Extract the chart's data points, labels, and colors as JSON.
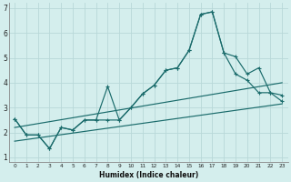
{
  "xlabel": "Humidex (Indice chaleur)",
  "bg_color": "#d4eeed",
  "grid_color": "#b8d8d8",
  "line_color": "#1a6b6b",
  "xlim": [
    -0.5,
    23.5
  ],
  "ylim": [
    0.8,
    7.2
  ],
  "yticks": [
    1,
    2,
    3,
    4,
    5,
    6,
    7
  ],
  "xticks": [
    0,
    1,
    2,
    3,
    4,
    5,
    6,
    7,
    8,
    9,
    10,
    11,
    12,
    13,
    14,
    15,
    16,
    17,
    18,
    19,
    20,
    21,
    22,
    23
  ],
  "line1_x": [
    0,
    1,
    2,
    3,
    4,
    5,
    6,
    7,
    8,
    9,
    10,
    11,
    12,
    13,
    14,
    15,
    16,
    17,
    18,
    19,
    20,
    21,
    22,
    23
  ],
  "line1_y": [
    2.55,
    1.9,
    1.9,
    1.35,
    2.2,
    2.1,
    2.5,
    2.5,
    2.5,
    2.5,
    3.0,
    3.55,
    3.9,
    4.5,
    4.6,
    5.3,
    6.75,
    6.85,
    5.2,
    5.05,
    4.35,
    4.6,
    3.6,
    3.5
  ],
  "line2_x": [
    0,
    1,
    2,
    3,
    4,
    5,
    6,
    7,
    8,
    9,
    10,
    11,
    12,
    13,
    14,
    15,
    16,
    17,
    18,
    19,
    20,
    21,
    22,
    23
  ],
  "line2_y": [
    2.55,
    1.9,
    1.9,
    1.35,
    2.2,
    2.1,
    2.5,
    2.5,
    3.85,
    2.5,
    3.0,
    3.55,
    3.9,
    4.5,
    4.6,
    5.3,
    6.75,
    6.85,
    5.2,
    4.35,
    4.1,
    3.6,
    3.6,
    3.25
  ],
  "line3_x": [
    0,
    23
  ],
  "line3_y": [
    1.65,
    3.15
  ],
  "line4_x": [
    0,
    23
  ],
  "line4_y": [
    2.2,
    4.0
  ]
}
